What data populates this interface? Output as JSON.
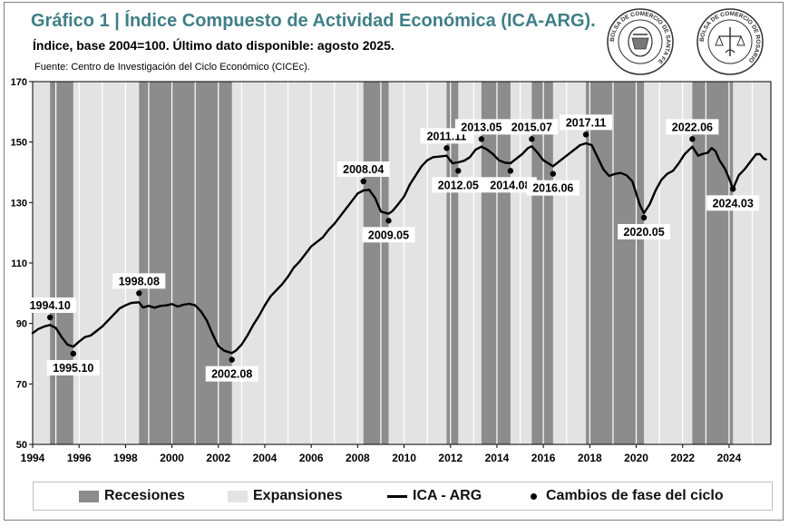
{
  "header": {
    "title": "Gráfico 1 | Índice Compuesto de Actividad Económica (ICA-ARG).",
    "subtitle": "Índice, base 2004=100. Último dato disponible: agosto 2025.",
    "source": "Fuente: Centro de Investigación del Ciclo Económico (CICEc)."
  },
  "seals": {
    "left_text": "BOLSA DE COMERCIO DE SANTA FE",
    "right_text": "BOLSA DE COMERCIO DE ROSARIO"
  },
  "legend": {
    "recessions": "Recesiones",
    "expansions": "Expansiones",
    "series": "ICA - ARG",
    "turning_points": "Cambios de fase del ciclo"
  },
  "colors": {
    "recession": "#8c8c8c",
    "expansion": "#e3e3e3",
    "line": "#000000",
    "title": "#3f7f86"
  },
  "chart_data": {
    "type": "line",
    "title": "Gráfico 1 | Índice Compuesto de Actividad Económica (ICA-ARG).",
    "xlabel": "",
    "ylabel": "",
    "xlim": [
      1994.0,
      2025.8
    ],
    "ylim": [
      50,
      170
    ],
    "x_ticks": [
      "1994",
      "1996",
      "1998",
      "2000",
      "2002",
      "2004",
      "2006",
      "2008",
      "2010",
      "2012",
      "2014",
      "2016",
      "2018",
      "2020",
      "2022",
      "2024"
    ],
    "y_ticks": [
      "50",
      "70",
      "90",
      "110",
      "130",
      "150",
      "170"
    ],
    "grid": "vertical-lines",
    "legend_position": "bottom",
    "recessions": [
      {
        "start": "1994.10",
        "end": "1995.10"
      },
      {
        "start": "1998.08",
        "end": "2002.08"
      },
      {
        "start": "2008.04",
        "end": "2009.05"
      },
      {
        "start": "2011.11",
        "end": "2012.05"
      },
      {
        "start": "2013.05",
        "end": "2014.08"
      },
      {
        "start": "2015.07",
        "end": "2016.06"
      },
      {
        "start": "2017.11",
        "end": "2020.05"
      },
      {
        "start": "2022.06",
        "end": "2024.03"
      }
    ],
    "series": [
      {
        "name": "ICA - ARG",
        "points": [
          [
            "1994.01",
            86.8
          ],
          [
            "1994.04",
            88.2
          ],
          [
            "1994.07",
            89.0
          ],
          [
            "1994.10",
            89.5
          ],
          [
            "1995.01",
            88.5
          ],
          [
            "1995.04",
            85.5
          ],
          [
            "1995.07",
            83.0
          ],
          [
            "1995.10",
            82.3
          ],
          [
            "1996.01",
            84.0
          ],
          [
            "1996.04",
            85.5
          ],
          [
            "1996.07",
            86.0
          ],
          [
            "1996.10",
            87.5
          ],
          [
            "1997.01",
            89.0
          ],
          [
            "1997.04",
            91.0
          ],
          [
            "1997.07",
            93.0
          ],
          [
            "1997.10",
            95.0
          ],
          [
            "1998.01",
            96.0
          ],
          [
            "1998.04",
            96.8
          ],
          [
            "1998.08",
            97.0
          ],
          [
            "1998.10",
            95.3
          ],
          [
            "1999.01",
            95.8
          ],
          [
            "1999.04",
            95.2
          ],
          [
            "1999.07",
            95.8
          ],
          [
            "1999.10",
            96.0
          ],
          [
            "2000.01",
            96.4
          ],
          [
            "2000.04",
            95.6
          ],
          [
            "2000.07",
            96.2
          ],
          [
            "2000.10",
            96.5
          ],
          [
            "2001.01",
            96.0
          ],
          [
            "2001.04",
            94.0
          ],
          [
            "2001.07",
            91.0
          ],
          [
            "2001.10",
            86.5
          ],
          [
            "2002.01",
            82.5
          ],
          [
            "2002.04",
            81.0
          ],
          [
            "2002.08",
            80.2
          ],
          [
            "2002.10",
            81.0
          ],
          [
            "2003.01",
            83.0
          ],
          [
            "2003.04",
            86.0
          ],
          [
            "2003.07",
            89.5
          ],
          [
            "2003.10",
            92.5
          ],
          [
            "2004.01",
            96.0
          ],
          [
            "2004.04",
            99.0
          ],
          [
            "2004.07",
            101.0
          ],
          [
            "2004.10",
            103.0
          ],
          [
            "2005.01",
            105.5
          ],
          [
            "2005.04",
            108.5
          ],
          [
            "2005.07",
            110.5
          ],
          [
            "2005.10",
            113.0
          ],
          [
            "2006.01",
            115.5
          ],
          [
            "2006.04",
            117.0
          ],
          [
            "2006.07",
            118.5
          ],
          [
            "2006.10",
            121.0
          ],
          [
            "2007.01",
            123.0
          ],
          [
            "2007.04",
            125.5
          ],
          [
            "2007.07",
            128.0
          ],
          [
            "2007.10",
            130.5
          ],
          [
            "2008.01",
            133.0
          ],
          [
            "2008.04",
            134.0
          ],
          [
            "2008.07",
            134.2
          ],
          [
            "2008.10",
            131.5
          ],
          [
            "2009.01",
            127.0
          ],
          [
            "2009.05",
            126.3
          ],
          [
            "2009.07",
            127.2
          ],
          [
            "2009.10",
            129.5
          ],
          [
            "2010.01",
            132.0
          ],
          [
            "2010.04",
            136.0
          ],
          [
            "2010.07",
            139.0
          ],
          [
            "2010.10",
            142.0
          ],
          [
            "2011.01",
            144.0
          ],
          [
            "2011.04",
            145.0
          ],
          [
            "2011.07",
            145.2
          ],
          [
            "2011.11",
            145.5
          ],
          [
            "2012.02",
            143.0
          ],
          [
            "2012.05",
            143.3
          ],
          [
            "2012.08",
            143.8
          ],
          [
            "2012.11",
            145.0
          ],
          [
            "2013.02",
            147.5
          ],
          [
            "2013.05",
            148.5
          ],
          [
            "2013.08",
            147.5
          ],
          [
            "2013.11",
            146.0
          ],
          [
            "2014.02",
            144.0
          ],
          [
            "2014.05",
            143.2
          ],
          [
            "2014.08",
            143.0
          ],
          [
            "2014.11",
            144.5
          ],
          [
            "2015.02",
            146.0
          ],
          [
            "2015.05",
            148.0
          ],
          [
            "2015.07",
            148.6
          ],
          [
            "2015.10",
            146.5
          ],
          [
            "2016.01",
            144.0
          ],
          [
            "2016.06",
            142.0
          ],
          [
            "2016.09",
            143.5
          ],
          [
            "2017.01",
            145.5
          ],
          [
            "2017.05",
            147.5
          ],
          [
            "2017.08",
            149.0
          ],
          [
            "2017.11",
            149.6
          ],
          [
            "2018.02",
            149.0
          ],
          [
            "2018.05",
            145.0
          ],
          [
            "2018.08",
            141.0
          ],
          [
            "2018.11",
            138.8
          ],
          [
            "2019.02",
            139.5
          ],
          [
            "2019.05",
            139.8
          ],
          [
            "2019.08",
            139.0
          ],
          [
            "2019.11",
            137.0
          ],
          [
            "2020.01",
            133.0
          ],
          [
            "2020.03",
            129.0
          ],
          [
            "2020.05",
            126.5
          ],
          [
            "2020.08",
            129.5
          ],
          [
            "2020.11",
            134.0
          ],
          [
            "2021.02",
            137.5
          ],
          [
            "2021.05",
            139.5
          ],
          [
            "2021.08",
            140.5
          ],
          [
            "2021.11",
            143.0
          ],
          [
            "2022.02",
            146.0
          ],
          [
            "2022.06",
            148.5
          ],
          [
            "2022.09",
            145.5
          ],
          [
            "2022.11",
            146.0
          ],
          [
            "2023.02",
            146.5
          ],
          [
            "2023.04",
            148.0
          ],
          [
            "2023.06",
            147.0
          ],
          [
            "2023.08",
            144.0
          ],
          [
            "2023.11",
            141.0
          ],
          [
            "2024.01",
            138.0
          ],
          [
            "2024.03",
            134.5
          ],
          [
            "2024.06",
            139.0
          ],
          [
            "2024.09",
            141.0
          ],
          [
            "2024.12",
            143.5
          ],
          [
            "2025.03",
            146.0
          ],
          [
            "2025.05",
            146.0
          ],
          [
            "2025.07",
            144.5
          ],
          [
            "2025.08",
            144.3
          ]
        ]
      }
    ],
    "turning_points": [
      {
        "label": "1994.10",
        "date": "1994.10",
        "value": 92.0,
        "label_pos": "above"
      },
      {
        "label": "1995.10",
        "date": "1995.10",
        "value": 80.0,
        "label_pos": "below"
      },
      {
        "label": "1998.08",
        "date": "1998.08",
        "value": 100.0,
        "label_pos": "above"
      },
      {
        "label": "2002.08",
        "date": "2002.08",
        "value": 78.0,
        "label_pos": "below"
      },
      {
        "label": "2008.04",
        "date": "2008.04",
        "value": 137.0,
        "label_pos": "above"
      },
      {
        "label": "2009.05",
        "date": "2009.05",
        "value": 124.0,
        "label_pos": "below"
      },
      {
        "label": "2011.11",
        "date": "2011.11",
        "value": 148.0,
        "label_pos": "above"
      },
      {
        "label": "2012.05",
        "date": "2012.05",
        "value": 140.5,
        "label_pos": "below"
      },
      {
        "label": "2013.05",
        "date": "2013.05",
        "value": 151.0,
        "label_pos": "above"
      },
      {
        "label": "2014.08",
        "date": "2014.08",
        "value": 140.5,
        "label_pos": "below"
      },
      {
        "label": "2015.07",
        "date": "2015.07",
        "value": 151.0,
        "label_pos": "above"
      },
      {
        "label": "2016.06",
        "date": "2016.06",
        "value": 139.5,
        "label_pos": "below"
      },
      {
        "label": "2017.11",
        "date": "2017.11",
        "value": 152.5,
        "label_pos": "above"
      },
      {
        "label": "2020.05",
        "date": "2020.05",
        "value": 125.0,
        "label_pos": "below"
      },
      {
        "label": "2022.06",
        "date": "2022.06",
        "value": 151.0,
        "label_pos": "above"
      },
      {
        "label": "2024.03",
        "date": "2024.03",
        "value": 134.5,
        "label_pos": "below"
      }
    ]
  }
}
